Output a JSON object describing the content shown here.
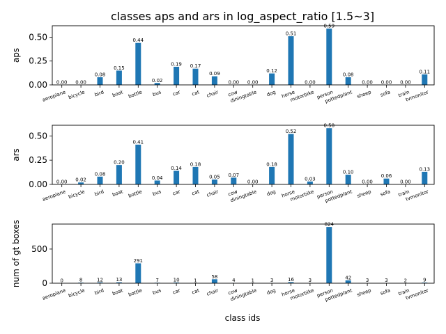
{
  "chart_data": {
    "type": "bar",
    "title": "classes aps and ars in log_aspect_ratio [1.5~3]",
    "xlabel": "class ids",
    "categories": [
      "aeroplane",
      "bicycle",
      "bird",
      "boat",
      "bottle",
      "bus",
      "car",
      "cat",
      "chair",
      "cow",
      "diningtable",
      "dog",
      "horse",
      "motorbike",
      "person",
      "pottedplant",
      "sheep",
      "sofa",
      "train",
      "tvmonitor"
    ],
    "subplots": [
      {
        "ylabel": "aps",
        "ylim": [
          0,
          0.62
        ],
        "yticks": [
          "0.00",
          "0.25",
          "0.50"
        ],
        "ytick_values": [
          0,
          0.25,
          0.5
        ],
        "values": [
          0.0,
          0.0,
          0.08,
          0.15,
          0.44,
          0.02,
          0.19,
          0.17,
          0.09,
          0.0,
          0.0,
          0.12,
          0.51,
          0.0,
          0.59,
          0.08,
          0.0,
          0.0,
          0.0,
          0.11
        ],
        "labels": [
          "0.00",
          "0.00",
          "0.08",
          "0.15",
          "0.44",
          "0.02",
          "0.19",
          "0.17",
          "0.09",
          "0.00",
          "0.00",
          "0.12",
          "0.51",
          "0.00",
          "0.59",
          "0.08",
          "0.00",
          "0.00",
          "0.00",
          "0.11"
        ]
      },
      {
        "ylabel": "ars",
        "ylim": [
          0,
          0.61
        ],
        "yticks": [
          "0.00",
          "0.25",
          "0.50"
        ],
        "ytick_values": [
          0,
          0.25,
          0.5
        ],
        "values": [
          0.0,
          0.02,
          0.08,
          0.2,
          0.41,
          0.04,
          0.14,
          0.18,
          0.05,
          0.07,
          0.0,
          0.18,
          0.52,
          0.03,
          0.58,
          0.1,
          0.0,
          0.06,
          0.0,
          0.13
        ],
        "labels": [
          "0.00",
          "0.02",
          "0.08",
          "0.20",
          "0.41",
          "0.04",
          "0.14",
          "0.18",
          "0.05",
          "0.07",
          "0.00",
          "0.18",
          "0.52",
          "0.03",
          "0.58",
          "0.10",
          "0.00",
          "0.06",
          "0.00",
          "0.13"
        ]
      },
      {
        "ylabel": "num of gt boxes",
        "ylim": [
          0,
          866
        ],
        "yticks": [
          "0",
          "500"
        ],
        "ytick_values": [
          0,
          500
        ],
        "values": [
          0,
          8,
          12,
          13,
          291,
          7,
          10,
          1,
          58,
          4,
          1,
          3,
          16,
          3,
          824,
          42,
          3,
          3,
          2,
          9
        ],
        "labels": [
          "0",
          "8",
          "12",
          "13",
          "291",
          "7",
          "10",
          "1",
          "58",
          "4",
          "1",
          "3",
          "16",
          "3",
          "824",
          "42",
          "3",
          "3",
          "2",
          "9"
        ]
      }
    ]
  }
}
